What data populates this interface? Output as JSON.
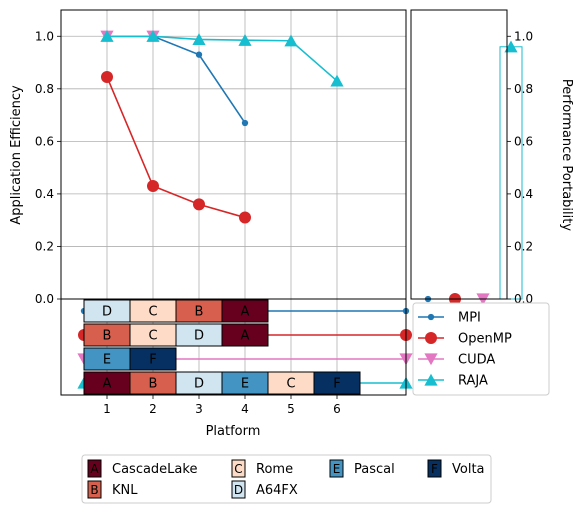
{
  "colors": {
    "mpi": "#1f77b4",
    "openmp": "#d62728",
    "cuda": "#e377c2",
    "raja": "#17becf",
    "grid": "#b0b0b0",
    "CascadeLake": "#67001f",
    "KNL": "#d6604d",
    "Rome": "#fddbc7",
    "A64FX": "#d1e5f0",
    "Pascal": "#4393c3",
    "Volta": "#053061"
  },
  "chart_data": [
    {
      "type": "line",
      "name": "application-efficiency",
      "xlabel": "Platform",
      "ylabel": "Application Efficiency",
      "x_ticks": [
        1,
        2,
        3,
        4,
        5,
        6
      ],
      "xlim": [
        0,
        7.5
      ],
      "ylim": [
        0,
        1.1
      ],
      "y_ticks": [
        "0.0",
        "0.2",
        "0.4",
        "0.6",
        "0.8",
        "1.0"
      ],
      "grid": true,
      "series": [
        {
          "name": "MPI",
          "x": [
            1,
            2,
            3,
            4
          ],
          "y": [
            1.0,
            1.0,
            0.93,
            0.67
          ]
        },
        {
          "name": "OpenMP",
          "x": [
            1,
            2,
            3,
            4
          ],
          "y": [
            0.845,
            0.43,
            0.36,
            0.31
          ]
        },
        {
          "name": "CUDA",
          "x": [
            1,
            2
          ],
          "y": [
            1.0,
            1.0
          ]
        },
        {
          "name": "RAJA",
          "x": [
            1,
            2,
            3,
            4,
            5,
            6
          ],
          "y": [
            1.0,
            1.0,
            0.988,
            0.985,
            0.983,
            0.83
          ]
        }
      ]
    },
    {
      "type": "bar",
      "name": "performance-portability",
      "ylabel": "Performance Portability",
      "ylim": [
        0,
        1.1
      ],
      "y_ticks": [
        "0.0",
        "0.2",
        "0.4",
        "0.6",
        "0.8",
        "1.0"
      ],
      "categories": [
        "MPI",
        "OpenMP",
        "CUDA",
        "RAJA"
      ],
      "values": [
        0,
        0,
        0,
        0.96
      ]
    },
    {
      "type": "table",
      "name": "platform-assignment",
      "rows": [
        {
          "series": "MPI",
          "cells": [
            "D",
            "C",
            "B",
            "A"
          ]
        },
        {
          "series": "OpenMP",
          "cells": [
            "B",
            "C",
            "D",
            "A"
          ]
        },
        {
          "series": "CUDA",
          "cells": [
            "E",
            "F"
          ]
        },
        {
          "series": "RAJA",
          "cells": [
            "A",
            "B",
            "D",
            "E",
            "C",
            "F"
          ]
        }
      ]
    }
  ],
  "legend_series": [
    "MPI",
    "OpenMP",
    "CUDA",
    "RAJA"
  ],
  "legend_platforms": [
    {
      "letter": "A",
      "name": "CascadeLake"
    },
    {
      "letter": "B",
      "name": "KNL"
    },
    {
      "letter": "C",
      "name": "Rome"
    },
    {
      "letter": "D",
      "name": "A64FX"
    },
    {
      "letter": "E",
      "name": "Pascal"
    },
    {
      "letter": "F",
      "name": "Volta"
    }
  ]
}
